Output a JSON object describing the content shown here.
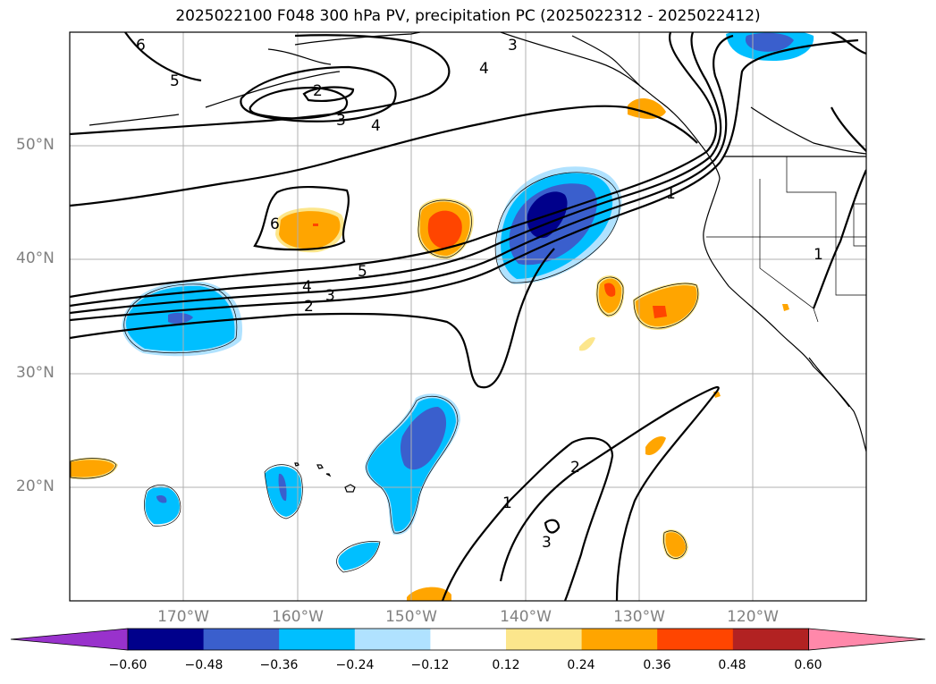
{
  "title": "2025022100 F048 300 hPa PV, precipitation PC (2025022312 - 2025022412)",
  "lat_labels": [
    "50°N",
    "40°N",
    "30°N",
    "20°N"
  ],
  "lon_labels": [
    "170°W",
    "160°W",
    "150°W",
    "140°W",
    "130°W",
    "120°W"
  ],
  "colorbar": {
    "colors": [
      "#9932cc",
      "#00008b",
      "#3a5fcd",
      "#00bfff",
      "#b0e2ff",
      "#ffffff",
      "#fce68c",
      "#ffa500",
      "#ff4500",
      "#b22222",
      "#ff88aa"
    ],
    "labels": [
      "−0.60",
      "−0.48",
      "−0.36",
      "−0.24",
      "−0.12",
      "0.12",
      "0.24",
      "0.36",
      "0.48",
      "0.60"
    ]
  },
  "contour_labels": [
    {
      "text": "6"
    },
    {
      "text": "5"
    },
    {
      "text": "2"
    },
    {
      "text": "3"
    },
    {
      "text": "4"
    },
    {
      "text": "3"
    },
    {
      "text": "4"
    },
    {
      "text": "6"
    },
    {
      "text": "5"
    },
    {
      "text": "4"
    },
    {
      "text": "3"
    },
    {
      "text": "2"
    },
    {
      "text": "1"
    },
    {
      "text": "1"
    },
    {
      "text": "2"
    },
    {
      "text": "3"
    },
    {
      "text": "1"
    }
  ],
  "colors": {
    "grid": "#b0b0b0",
    "coast": "#000000",
    "contour": "#000000"
  }
}
